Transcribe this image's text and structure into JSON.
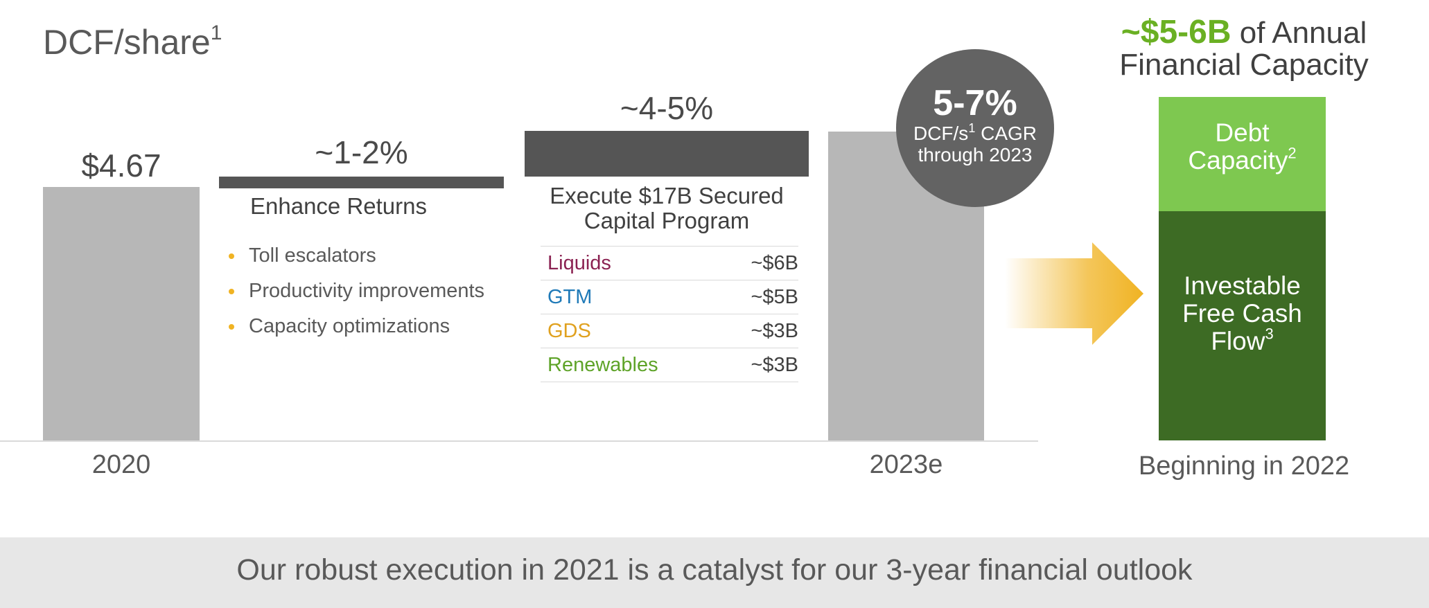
{
  "title": "DCF/share",
  "title_sup": "1",
  "chart_data": {
    "type": "bar",
    "subtype": "waterfall",
    "title": "DCF/share",
    "categories": [
      "2020",
      "~1-2%",
      "~4-5%",
      "2023e"
    ],
    "labels": [
      "$4.67",
      "~1-2%",
      "~4-5%",
      ""
    ],
    "values_relative": [
      1.0,
      0.05,
      0.18,
      1.23
    ],
    "x_tick_labels": [
      "2020",
      "2023e"
    ],
    "start_value_label": "$4.67",
    "increment_1": {
      "label": "~1-2%",
      "heading": "Enhance Returns",
      "bullets": [
        "Toll escalators",
        "Productivity improvements",
        "Capacity optimizations"
      ]
    },
    "increment_2": {
      "label": "~4-5%",
      "heading_line1": "Execute $17B Secured",
      "heading_line2": "Capital Program",
      "program": [
        {
          "name": "Liquids",
          "amount": "~$6B",
          "color": "#8b2252"
        },
        {
          "name": "GTM",
          "amount": "~$5B",
          "color": "#1f7ab8"
        },
        {
          "name": "GDS",
          "amount": "~$3B",
          "color": "#e0a11f"
        },
        {
          "name": "Renewables",
          "amount": "~$3B",
          "color": "#5ea328"
        }
      ]
    },
    "cagr": {
      "value": "5-7%",
      "line1": "DCF/s",
      "line1_sup": "1",
      "line1_rest": " CAGR",
      "line2": "through 2023"
    }
  },
  "capacity": {
    "headline": "~$5-6B",
    "headline_rest": " of Annual",
    "line2": "Financial Capacity",
    "debt_line1": "Debt",
    "debt_line2": "Capacity",
    "debt_sup": "2",
    "fcf_line1": "Investable",
    "fcf_line2": "Free Cash",
    "fcf_line3": "Flow",
    "fcf_sup": "3",
    "caption": "Beginning in 2022"
  },
  "footer": "Our robust execution in 2021 is a catalyst for our 3-year financial outlook",
  "colors": {
    "bar_grey": "#b7b7b7",
    "bar_dark": "#555555",
    "debt_green": "#7ec850",
    "fcf_green": "#3d6b24",
    "arrow_yellow": "#f0b323",
    "accent_green": "#6ab023"
  }
}
